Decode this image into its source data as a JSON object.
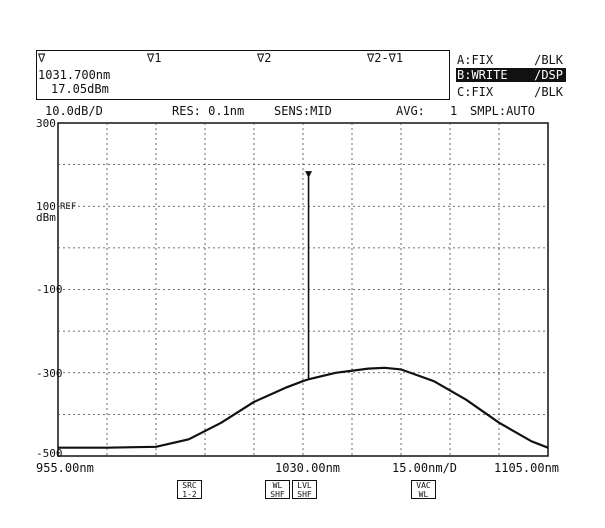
{
  "marker_box": {
    "marker_symbol": "∇",
    "v1_label": "∇1",
    "v2_label": "∇2",
    "diff_label": "∇2-∇1",
    "wavelength": "1031.700nm",
    "level": "17.05dBm"
  },
  "traces": [
    {
      "label": "A:FIX",
      "state": "/BLK",
      "selected": false
    },
    {
      "label": "B:WRITE",
      "state": "/DSP",
      "selected": true
    },
    {
      "label": "C:FIX",
      "state": "/BLK",
      "selected": false
    }
  ],
  "settings": {
    "scale": "10.0dB/D",
    "res": "RES: 0.1nm",
    "sens": "SENS:MID",
    "avg_label": "AVG:",
    "avg_value": "1",
    "smpl": "SMPL:AUTO"
  },
  "y_axis": {
    "ticks": [
      "300",
      "100",
      "-100",
      "-300",
      "-500"
    ],
    "unit": "dBm",
    "ref_label": "REF"
  },
  "x_axis": {
    "start": "955.00nm",
    "center": "1030.00nm",
    "span_per_div": "15.00nm/D",
    "stop": "1105.00nm"
  },
  "softkeys": [
    {
      "line1": "SRC",
      "line2": "1-2"
    },
    {
      "line1": "WL",
      "line2": "SHF"
    },
    {
      "line1": "LVL",
      "line2": "SHF"
    },
    {
      "line1": "VAC",
      "line2": "WL"
    }
  ],
  "chart_data": {
    "type": "line",
    "x_range_nm": [
      955,
      1105
    ],
    "y_range": [
      -500,
      300
    ],
    "grid": true,
    "series": [
      {
        "x": [
          955,
          970,
          985,
          995,
          1005,
          1015,
          1025,
          1030,
          1032,
          1040,
          1050,
          1055,
          1060,
          1070,
          1080,
          1090,
          1100,
          1105
        ],
        "y": [
          -480,
          -480,
          -478,
          -460,
          -420,
          -370,
          -335,
          -320,
          -315,
          -300,
          -290,
          -288,
          -292,
          -320,
          -365,
          -420,
          -465,
          -480
        ]
      }
    ],
    "peak": {
      "x": 1031.7,
      "y": 170
    }
  }
}
